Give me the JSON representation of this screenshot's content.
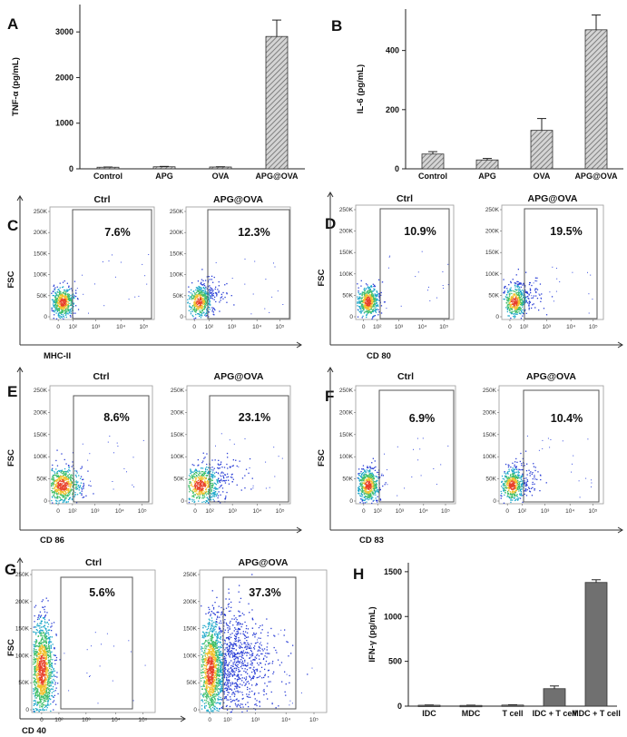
{
  "colors": {
    "bar_light": "#b8b8b8",
    "bar_dark": "#707070",
    "axis": "#222222",
    "gate": "#555555"
  },
  "chart_data": [
    {
      "panel": "A",
      "type": "bar",
      "categories": [
        "Control",
        "APG",
        "OVA",
        "APG@OVA"
      ],
      "values": [
        35,
        45,
        40,
        2900
      ],
      "errors": [
        5,
        8,
        6,
        360
      ],
      "ylabel": "TNF-α (pg/mL)",
      "ylim": [
        0,
        3600
      ],
      "yticks": [
        0,
        1000,
        2000,
        3000
      ],
      "fill": "hatched"
    },
    {
      "panel": "B",
      "type": "bar",
      "categories": [
        "Control",
        "APG",
        "OVA",
        "APG@OVA"
      ],
      "values": [
        50,
        30,
        130,
        470
      ],
      "errors": [
        8,
        5,
        40,
        50
      ],
      "ylabel": "IL-6 (pg/mL)",
      "ylim": [
        0,
        540
      ],
      "yticks": [
        0,
        200,
        400
      ],
      "fill": "hatched"
    },
    {
      "panel": "H",
      "type": "bar",
      "categories": [
        "IDC",
        "MDC",
        "T cell",
        "IDC + T cell",
        "MDC + T cell"
      ],
      "values": [
        10,
        8,
        12,
        195,
        1380
      ],
      "errors": [
        3,
        3,
        3,
        30,
        30
      ],
      "ylabel": "IFN-γ (pg/mL)",
      "ylim": [
        0,
        1600
      ],
      "yticks": [
        0,
        500,
        1000,
        1500
      ],
      "fill": "solid"
    },
    {
      "panel": "C",
      "type": "scatter",
      "marker": "MHC-II",
      "samples": [
        {
          "name": "Ctrl",
          "percent": "7.6%"
        },
        {
          "name": "APG@OVA",
          "percent": "12.3%"
        }
      ]
    },
    {
      "panel": "D",
      "type": "scatter",
      "marker": "CD 80",
      "samples": [
        {
          "name": "Ctrl",
          "percent": "10.9%"
        },
        {
          "name": "APG@OVA",
          "percent": "19.5%"
        }
      ]
    },
    {
      "panel": "E",
      "type": "scatter",
      "marker": "CD 86",
      "samples": [
        {
          "name": "Ctrl",
          "percent": "8.6%"
        },
        {
          "name": "APG@OVA",
          "percent": "23.1%"
        }
      ]
    },
    {
      "panel": "F",
      "type": "scatter",
      "marker": "CD 83",
      "samples": [
        {
          "name": "Ctrl",
          "percent": "6.9%"
        },
        {
          "name": "APG@OVA",
          "percent": "10.4%"
        }
      ]
    },
    {
      "panel": "G",
      "type": "scatter",
      "marker": "CD 40",
      "samples": [
        {
          "name": "Ctrl",
          "percent": "5.6%"
        },
        {
          "name": "APG@OVA",
          "percent": "37.3%"
        }
      ]
    }
  ],
  "flow_axes": {
    "y_label": "FSC",
    "y_ticks": [
      "250K",
      "200K",
      "150K",
      "100K",
      "50K",
      "0"
    ],
    "x_ticks": [
      "0",
      "10²",
      "10³",
      "10⁴",
      "10⁵"
    ]
  }
}
